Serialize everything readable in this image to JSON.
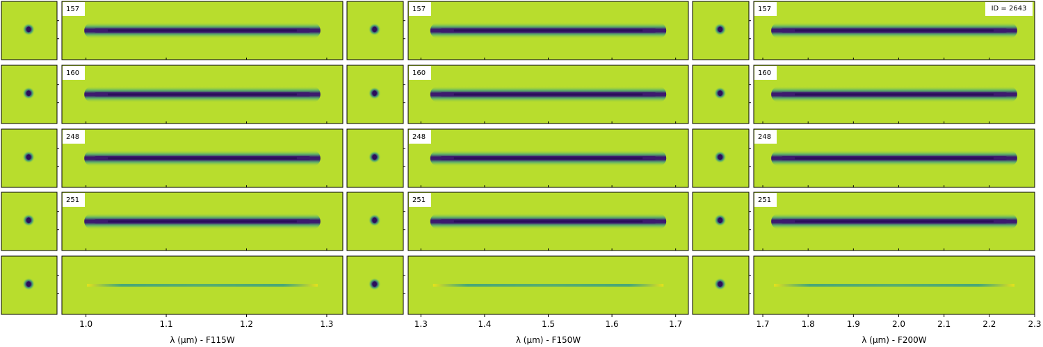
{
  "figure": {
    "id_label": "ID = 2643",
    "row_labels": [
      "157",
      "160",
      "248",
      "251",
      ""
    ],
    "colors": {
      "background": "#b8dd2d",
      "trace": "#3c1a6e",
      "trace_core": "#2a0f5a",
      "halo": "#2b9a8a",
      "residual": "#e6e21a"
    }
  },
  "chart_data": [
    {
      "type": "heatmap",
      "filter": "F115W",
      "xlabel": "λ (μm) - F115W",
      "xlim": [
        0.97,
        1.32
      ],
      "ticks": [
        1.0,
        1.1,
        1.2,
        1.3
      ],
      "tick_labels": [
        "1.0",
        "1.1",
        "1.2",
        "1.3"
      ],
      "trace_range": [
        1.01,
        1.28
      ],
      "rows": [
        "157",
        "160",
        "248",
        "251",
        ""
      ]
    },
    {
      "type": "heatmap",
      "filter": "F150W",
      "xlabel": "λ (μm) - F150W",
      "xlim": [
        1.28,
        1.72
      ],
      "ticks": [
        1.3,
        1.4,
        1.5,
        1.6,
        1.7
      ],
      "tick_labels": [
        "1.3",
        "1.4",
        "1.5",
        "1.6",
        "1.7"
      ],
      "trace_range": [
        1.33,
        1.67
      ],
      "rows": [
        "157",
        "160",
        "248",
        "251",
        ""
      ]
    },
    {
      "type": "heatmap",
      "filter": "F200W",
      "xlabel": "λ (μm) - F200W",
      "xlim": [
        1.68,
        2.3
      ],
      "ticks": [
        1.7,
        1.8,
        1.9,
        2.0,
        2.1,
        2.2,
        2.3
      ],
      "tick_labels": [
        "1.7",
        "1.8",
        "1.9",
        "2.0",
        "2.1",
        "2.2",
        "2.3"
      ],
      "trace_range": [
        1.74,
        2.24
      ],
      "rows": [
        "157",
        "160",
        "248",
        "251",
        ""
      ]
    }
  ]
}
